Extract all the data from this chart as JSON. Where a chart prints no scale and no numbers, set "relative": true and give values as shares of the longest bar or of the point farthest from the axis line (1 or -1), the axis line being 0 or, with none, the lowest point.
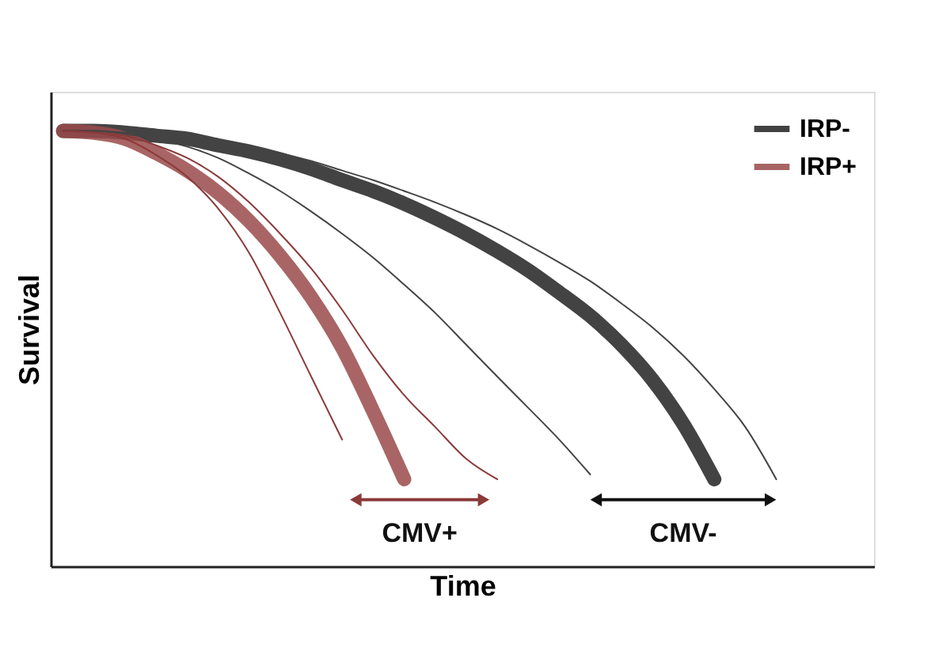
{
  "chart_data": {
    "type": "line",
    "relative": true,
    "xlabel": "Time",
    "ylabel": "Survival",
    "tick_labels": false,
    "grid": false,
    "legend": "top right",
    "categories": [
      null,
      null,
      null,
      null,
      null,
      null,
      null,
      null,
      null,
      null,
      null,
      null,
      null,
      null,
      null,
      null,
      null,
      null,
      null,
      null,
      null,
      null,
      null,
      null,
      null
    ],
    "series": [
      {
        "name": "IRP-",
        "color": "#222222",
        "values": [
          1.0,
          1.0,
          0.996,
          0.989,
          0.982,
          0.967,
          0.953,
          0.935,
          0.913,
          0.887,
          0.862,
          0.833,
          0.8,
          0.764,
          0.724,
          0.68,
          0.629,
          0.575,
          0.509,
          0.429,
          0.327,
          0.2,
          null,
          null,
          null
        ]
      },
      {
        "name": "IRP+",
        "color": "#9a4a4a",
        "values": [
          1.0,
          0.996,
          0.982,
          0.949,
          0.909,
          0.858,
          0.793,
          0.713,
          0.618,
          0.502,
          0.356,
          0.2,
          null,
          null,
          null,
          null,
          null,
          null,
          null,
          null,
          null,
          null,
          null,
          null,
          null
        ]
      },
      {
        "color": "#444444",
        "values": [
          1.0,
          1.0,
          0.996,
          0.993,
          0.985,
          0.975,
          0.964,
          0.949,
          0.931,
          0.909,
          0.887,
          0.862,
          0.836,
          0.807,
          0.775,
          0.738,
          0.698,
          0.655,
          0.604,
          0.549,
          0.484,
          0.407,
          0.32,
          0.2,
          null
        ]
      },
      {
        "color": "#444444",
        "values": [
          1.0,
          1.0,
          0.993,
          0.982,
          0.964,
          0.938,
          0.902,
          0.862,
          0.815,
          0.764,
          0.709,
          0.647,
          0.582,
          0.509,
          0.436,
          0.364,
          0.291,
          0.211,
          null,
          null,
          null,
          null,
          null,
          null,
          null
        ]
      },
      {
        "color": "#8b3a3a",
        "values": [
          1.0,
          0.996,
          0.989,
          0.967,
          0.938,
          0.895,
          0.836,
          0.764,
          0.684,
          0.589,
          0.484,
          0.393,
          0.32,
          0.247,
          0.2,
          null,
          null,
          null,
          null,
          null,
          null,
          null,
          null,
          null,
          null
        ]
      },
      {
        "color": "#8b3a3a",
        "values": [
          1.0,
          0.996,
          0.982,
          0.945,
          0.895,
          0.822,
          0.72,
          0.582,
          0.436,
          0.291,
          null,
          null,
          null,
          null,
          null,
          null,
          null,
          null,
          null,
          null,
          null,
          null,
          null,
          null,
          null
        ]
      }
    ],
    "annotations": [
      "CMV+",
      "CMV-"
    ]
  }
}
